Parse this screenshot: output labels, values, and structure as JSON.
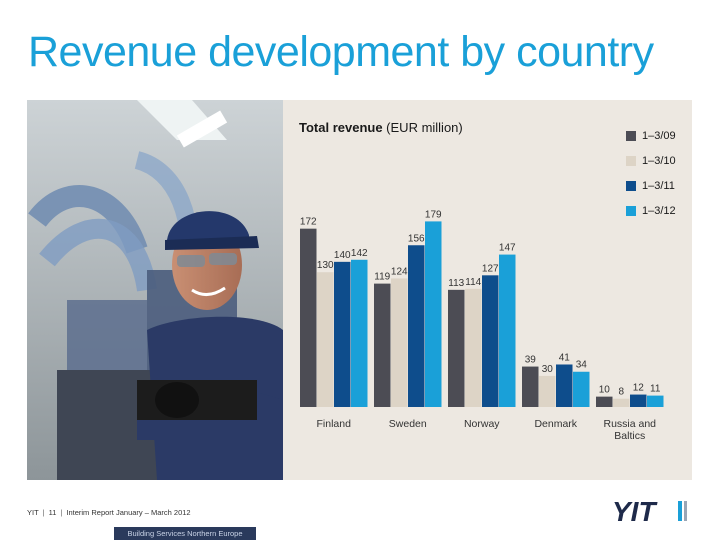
{
  "slide": {
    "title": "Revenue development by country",
    "footer": {
      "company": "YIT",
      "page": "11",
      "report": "Interim Report January – March 2012",
      "bar_label": "Building Services Northern Europe"
    },
    "logo_text": "YIT"
  },
  "colors": {
    "title": "#1aa0d8",
    "panel_bg": "#ede8e1",
    "series": [
      "#4c4c54",
      "#ddd4c6",
      "#0e4d8c",
      "#1aa0d8"
    ]
  },
  "chart_data": {
    "type": "bar",
    "title_bold": "Total revenue",
    "title_rest": " (EUR million)",
    "categories": [
      "Finland",
      "Sweden",
      "Norway",
      "Denmark",
      "Russia and Baltics"
    ],
    "category_lines": [
      [
        "Finland"
      ],
      [
        "Sweden"
      ],
      [
        "Norway"
      ],
      [
        "Denmark"
      ],
      [
        "Russia and",
        "Baltics"
      ]
    ],
    "series": [
      {
        "name": "1–3/09",
        "values": [
          172,
          119,
          113,
          39,
          10
        ]
      },
      {
        "name": "1–3/10",
        "values": [
          130,
          124,
          114,
          30,
          8
        ]
      },
      {
        "name": "1–3/11",
        "values": [
          140,
          156,
          127,
          41,
          12
        ]
      },
      {
        "name": "1–3/12",
        "values": [
          142,
          179,
          147,
          34,
          11
        ]
      }
    ],
    "ylim": [
      0,
      190
    ],
    "legend_position": "top-right",
    "grid": false
  }
}
